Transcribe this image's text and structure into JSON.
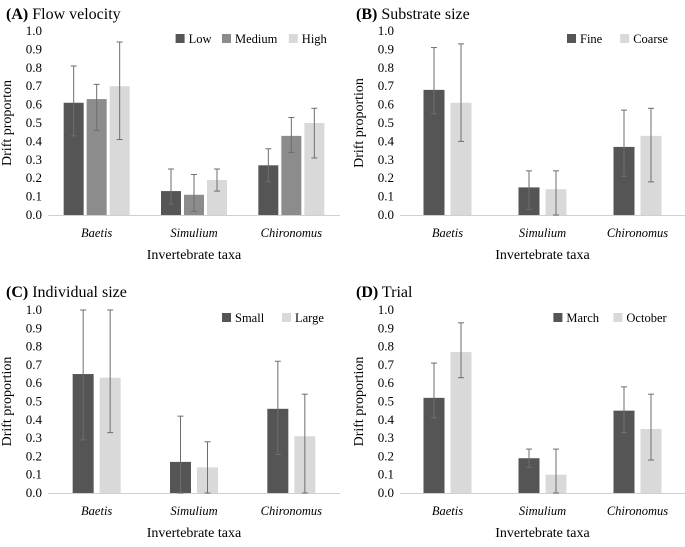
{
  "chart_data": [
    {
      "type": "bar",
      "panel": "(A)",
      "title": "Flow velocity",
      "xlabel": "Invertebrate taxa",
      "ylabel": "Drift proporton",
      "ylim": [
        0,
        1.0
      ],
      "yticks": [
        "0.0",
        "0.1",
        "0.2",
        "0.3",
        "0.4",
        "0.5",
        "0.6",
        "0.7",
        "0.8",
        "0.9",
        "1.0"
      ],
      "categories": [
        "Baetis",
        "Simulium",
        "Chironomus"
      ],
      "legend_position": "top-right",
      "series": [
        {
          "name": "Low",
          "color": "#555555",
          "values": [
            0.61,
            0.13,
            0.27
          ],
          "err_low": [
            0.43,
            0.06,
            0.18
          ],
          "err_high": [
            0.81,
            0.25,
            0.36
          ]
        },
        {
          "name": "Medium",
          "color": "#8c8c8c",
          "values": [
            0.63,
            0.11,
            0.43
          ],
          "err_low": [
            0.46,
            0.02,
            0.34
          ],
          "err_high": [
            0.71,
            0.22,
            0.53
          ]
        },
        {
          "name": "High",
          "color": "#d9d9d9",
          "values": [
            0.7,
            0.19,
            0.5
          ],
          "err_low": [
            0.41,
            0.13,
            0.31
          ],
          "err_high": [
            0.94,
            0.25,
            0.58
          ]
        }
      ]
    },
    {
      "type": "bar",
      "panel": "(B)",
      "title": "Substrate size",
      "xlabel": "Invertebrate taxa",
      "ylabel": "Drift proportion",
      "ylim": [
        0,
        1.0
      ],
      "yticks": [
        "0.0",
        "0.1",
        "0.2",
        "0.3",
        "0.4",
        "0.5",
        "0.6",
        "0.7",
        "0.8",
        "0.9",
        "1.0"
      ],
      "categories": [
        "Baetis",
        "Simulium",
        "Chironomus"
      ],
      "legend_position": "top-right",
      "series": [
        {
          "name": "Fine",
          "color": "#555555",
          "values": [
            0.68,
            0.15,
            0.37
          ],
          "err_low": [
            0.55,
            0.03,
            0.21
          ],
          "err_high": [
            0.91,
            0.24,
            0.57
          ]
        },
        {
          "name": "Coarse",
          "color": "#d9d9d9",
          "values": [
            0.61,
            0.14,
            0.43
          ],
          "err_low": [
            0.4,
            0.0,
            0.18
          ],
          "err_high": [
            0.93,
            0.24,
            0.58
          ]
        }
      ]
    },
    {
      "type": "bar",
      "panel": "(C)",
      "title": "Individual size",
      "xlabel": "Invertebrate taxa",
      "ylabel": "Drift proportion",
      "ylim": [
        0,
        1.0
      ],
      "yticks": [
        "0.0",
        "0.1",
        "0.2",
        "0.3",
        "0.4",
        "0.5",
        "0.6",
        "0.7",
        "0.8",
        "0.9",
        "1.0"
      ],
      "categories": [
        "Baetis",
        "Simulium",
        "Chironomus"
      ],
      "legend_position": "top-right",
      "series": [
        {
          "name": "Small",
          "color": "#555555",
          "values": [
            0.65,
            0.17,
            0.46
          ],
          "err_low": [
            0.29,
            0.0,
            0.21
          ],
          "err_high": [
            1.0,
            0.42,
            0.72
          ]
        },
        {
          "name": "Large",
          "color": "#d9d9d9",
          "values": [
            0.63,
            0.14,
            0.31
          ],
          "err_low": [
            0.33,
            0.0,
            0.0
          ],
          "err_high": [
            1.0,
            0.28,
            0.54
          ]
        }
      ]
    },
    {
      "type": "bar",
      "panel": "(D)",
      "title": "Trial",
      "xlabel": "Invertebrate taxa",
      "ylabel": "Drift proportion",
      "ylim": [
        0,
        1.0
      ],
      "yticks": [
        "0.0",
        "0.1",
        "0.2",
        "0.3",
        "0.4",
        "0.5",
        "0.6",
        "0.7",
        "0.8",
        "0.9",
        "1.0"
      ],
      "categories": [
        "Baetis",
        "Simulium",
        "Chironomus"
      ],
      "legend_position": "top-right",
      "series": [
        {
          "name": "March",
          "color": "#555555",
          "values": [
            0.52,
            0.19,
            0.45
          ],
          "err_low": [
            0.41,
            0.14,
            0.33
          ],
          "err_high": [
            0.71,
            0.24,
            0.58
          ]
        },
        {
          "name": "October",
          "color": "#d9d9d9",
          "values": [
            0.77,
            0.1,
            0.35
          ],
          "err_low": [
            0.63,
            0.0,
            0.18
          ],
          "err_high": [
            0.93,
            0.24,
            0.54
          ]
        }
      ]
    }
  ]
}
